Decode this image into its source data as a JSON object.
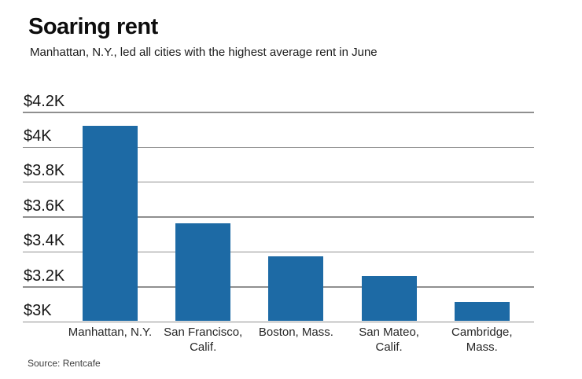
{
  "chart_data": {
    "type": "bar",
    "title": "Soaring rent",
    "subtitle": "Manhattan, N.Y., led all cities with the highest average rent in June",
    "categories": [
      "Manhattan, N.Y.",
      "San Francisco,\nCalif.",
      "Boston, Mass.",
      "San Mateo,\nCalif.",
      "Cambridge,\nMass."
    ],
    "values": [
      4120,
      3560,
      3370,
      3260,
      3110
    ],
    "xlabel": "",
    "ylabel": "",
    "ylim": [
      3000,
      4200
    ],
    "yticks": [
      3000,
      3200,
      3400,
      3600,
      3800,
      4000,
      4200
    ],
    "ytick_labels": [
      "$3K",
      "$3.2K",
      "$3.4K",
      "$3.6K",
      "$3.8K",
      "$4K",
      "$4.2K"
    ],
    "grid": true,
    "legend": false,
    "bar_color": "#1d6aa5",
    "gridline_color": "#8f8f8f",
    "source": "Source: Rentcafe"
  }
}
